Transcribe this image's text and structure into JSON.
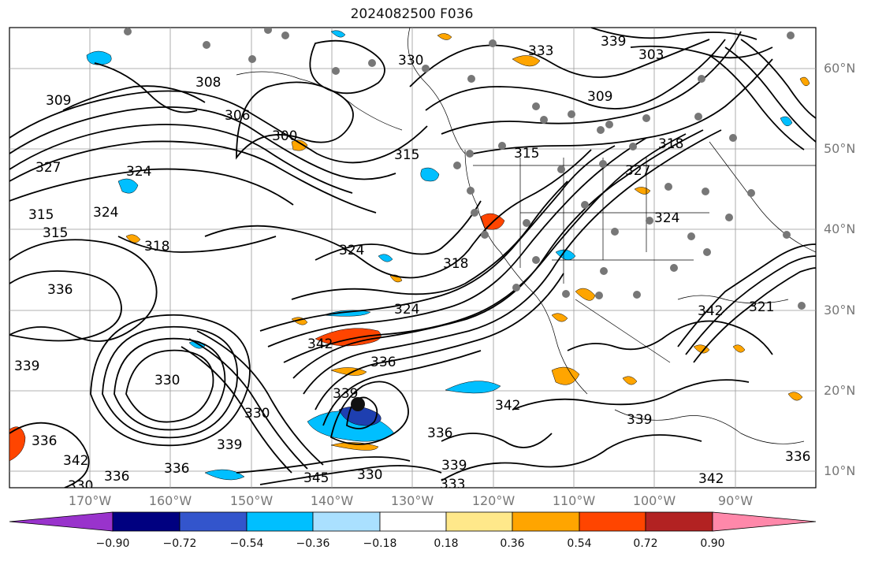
{
  "title": "2024082500 F036",
  "map": {
    "lat_labels": [
      "60°N",
      "50°N",
      "40°N",
      "30°N",
      "20°N",
      "10°N"
    ],
    "lon_labels": [
      "170°W",
      "160°W",
      "150°W",
      "140°W",
      "130°W",
      "120°W",
      "110°W",
      "100°W",
      "90°W"
    ],
    "contour_labels": [
      "309",
      "308",
      "306",
      "300",
      "303",
      "309",
      "315",
      "315",
      "318",
      "324",
      "327",
      "324",
      "327",
      "315",
      "315",
      "318",
      "324",
      "324",
      "318",
      "324",
      "336",
      "330",
      "339",
      "336",
      "339",
      "342",
      "336",
      "330",
      "333",
      "339",
      "342",
      "336",
      "345",
      "330",
      "336",
      "336",
      "339",
      "339",
      "342",
      "330",
      "321",
      "342",
      "330",
      "333",
      "339",
      "342",
      "336"
    ],
    "shading_colors": {
      "negative": "#00bfff",
      "positive": "#ffa500",
      "strong_positive": "#ff4500",
      "strong_negative": "#1e3fb0"
    }
  },
  "colorbar": {
    "colors": [
      "#9933cc",
      "#000080",
      "#3355cc",
      "#00bfff",
      "#aae0ff",
      "#ffffff",
      "#ffe88a",
      "#ffa500",
      "#ff4500",
      "#b22222",
      "#ff88aa"
    ],
    "tick_labels": [
      "−0.90",
      "−0.72",
      "−0.54",
      "−0.36",
      "−0.18",
      "0.18",
      "0.36",
      "0.54",
      "0.72",
      "0.90"
    ]
  }
}
